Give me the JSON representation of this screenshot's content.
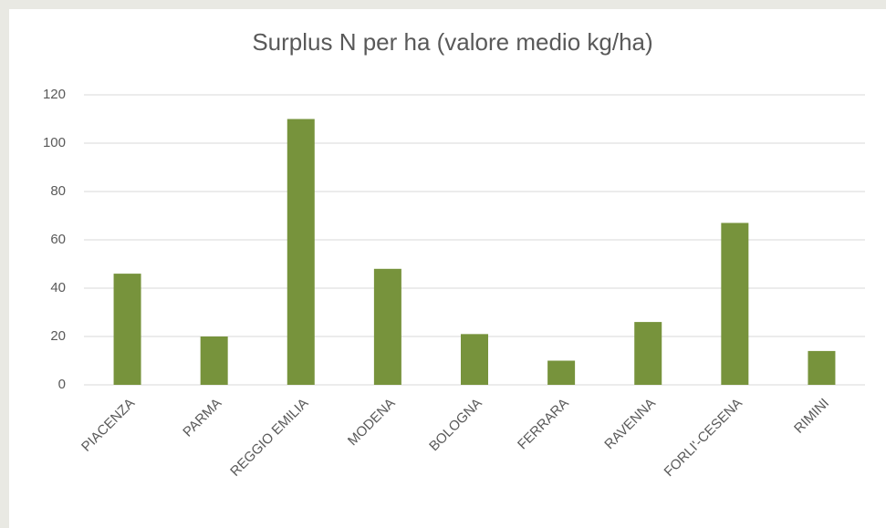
{
  "chart_data": {
    "type": "bar",
    "title": "Surplus N per ha (valore medio kg/ha)",
    "categories": [
      "PIACENZA",
      "PARMA",
      "REGGIO EMILIA",
      "MODENA",
      "BOLOGNA",
      "FERRARA",
      "RAVENNA",
      "FORLI'-CESENA",
      "RIMINI"
    ],
    "values": [
      46,
      20,
      110,
      48,
      21,
      10,
      26,
      67,
      14
    ],
    "color": "#77933c",
    "ylim": [
      0,
      120
    ],
    "yticks": [
      0,
      20,
      40,
      60,
      80,
      100,
      120
    ],
    "grid": true
  }
}
